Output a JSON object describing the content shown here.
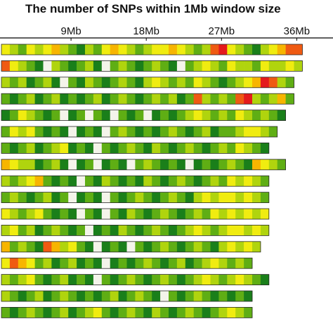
{
  "chart_data": {
    "type": "heatmap",
    "title": "The number of SNPs within 1Mb window size",
    "x_axis": {
      "unit": "Mb",
      "ticks": [
        {
          "value": 9,
          "label": "9Mb"
        },
        {
          "value": 18,
          "label": "18Mb"
        },
        {
          "value": 27,
          "label": "27Mb"
        },
        {
          "value": 36,
          "label": "36Mb"
        }
      ]
    },
    "bin_size_mb": 1,
    "color_scale": [
      "#f4f4ea",
      "#1a7f1a",
      "#5fae14",
      "#b0d40e",
      "#f0ec10",
      "#f7b500",
      "#ef5a12",
      "#e41a1c"
    ],
    "chromosomes": [
      {
        "length_mb": 36,
        "density": [
          4,
          3,
          2,
          4,
          3,
          4,
          5,
          3,
          2,
          1,
          3,
          2,
          4,
          5,
          4,
          3,
          2,
          3,
          4,
          4,
          5,
          4,
          3,
          2,
          3,
          6,
          7,
          4,
          3,
          2,
          1,
          3,
          4,
          5,
          6,
          6
        ]
      },
      {
        "length_mb": 36,
        "density": [
          6,
          4,
          3,
          2,
          1,
          0,
          3,
          2,
          1,
          2,
          3,
          1,
          0,
          2,
          3,
          2,
          1,
          2,
          3,
          2,
          1,
          0,
          2,
          3,
          4,
          3,
          2,
          4,
          3,
          3,
          2,
          4,
          3,
          3,
          4,
          3
        ]
      },
      {
        "length_mb": 35,
        "density": [
          3,
          2,
          3,
          1,
          2,
          3,
          1,
          0,
          2,
          1,
          3,
          2,
          1,
          2,
          3,
          2,
          1,
          3,
          4,
          3,
          2,
          3,
          2,
          4,
          3,
          2,
          1,
          2,
          3,
          4,
          5,
          7,
          6,
          3,
          2
        ]
      },
      {
        "length_mb": 35,
        "density": [
          2,
          1,
          2,
          3,
          1,
          2,
          3,
          1,
          2,
          1,
          2,
          3,
          1,
          2,
          3,
          2,
          1,
          2,
          3,
          2,
          3,
          1,
          2,
          6,
          3,
          2,
          3,
          2,
          6,
          7,
          3,
          2,
          3,
          5,
          2
        ]
      },
      {
        "length_mb": 34,
        "density": [
          1,
          2,
          4,
          3,
          2,
          1,
          2,
          0,
          1,
          2,
          0,
          2,
          1,
          0,
          2,
          1,
          2,
          0,
          1,
          2,
          1,
          2,
          3,
          4,
          3,
          2,
          3,
          2,
          4,
          3,
          2,
          3,
          2,
          1
        ]
      },
      {
        "length_mb": 33,
        "density": [
          2,
          4,
          3,
          4,
          2,
          1,
          2,
          1,
          0,
          1,
          2,
          1,
          0,
          2,
          3,
          2,
          1,
          2,
          1,
          2,
          3,
          2,
          1,
          2,
          3,
          1,
          2,
          2,
          3,
          4,
          4,
          3,
          2
        ]
      },
      {
        "length_mb": 32,
        "density": [
          2,
          1,
          2,
          3,
          1,
          2,
          3,
          4,
          1,
          2,
          1,
          0,
          2,
          1,
          2,
          3,
          2,
          1,
          3,
          2,
          1,
          2,
          3,
          2,
          1,
          2,
          3,
          2,
          4,
          3,
          2,
          1
        ]
      },
      {
        "length_mb": 34,
        "density": [
          5,
          4,
          3,
          3,
          1,
          2,
          3,
          1,
          0,
          1,
          2,
          0,
          1,
          2,
          1,
          0,
          2,
          3,
          2,
          1,
          2,
          1,
          0,
          1,
          2,
          1,
          2,
          3,
          2,
          1,
          5,
          4,
          3,
          2
        ]
      },
      {
        "length_mb": 32,
        "density": [
          3,
          2,
          3,
          4,
          5,
          2,
          1,
          2,
          1,
          0,
          2,
          1,
          3,
          2,
          1,
          2,
          1,
          3,
          2,
          1,
          2,
          3,
          2,
          1,
          2,
          3,
          2,
          4,
          3,
          4,
          3,
          2
        ]
      },
      {
        "length_mb": 32,
        "density": [
          2,
          3,
          2,
          1,
          2,
          3,
          1,
          2,
          0,
          1,
          2,
          1,
          0,
          2,
          1,
          2,
          3,
          2,
          1,
          2,
          3,
          2,
          1,
          3,
          4,
          3,
          4,
          4,
          3,
          4,
          3,
          2
        ]
      },
      {
        "length_mb": 32,
        "density": [
          4,
          3,
          2,
          3,
          4,
          2,
          1,
          2,
          1,
          0,
          2,
          1,
          0,
          2,
          1,
          3,
          2,
          1,
          2,
          3,
          2,
          1,
          2,
          3,
          2,
          4,
          3,
          4,
          3,
          4,
          3,
          4
        ]
      },
      {
        "length_mb": 32,
        "density": [
          3,
          4,
          2,
          3,
          1,
          2,
          3,
          2,
          1,
          2,
          0,
          1,
          2,
          1,
          3,
          2,
          1,
          2,
          3,
          2,
          1,
          2,
          3,
          4,
          3,
          2,
          3,
          4,
          4,
          3,
          4,
          3
        ]
      },
      {
        "length_mb": 31,
        "density": [
          5,
          2,
          3,
          2,
          1,
          6,
          5,
          3,
          4,
          2,
          1,
          0,
          1,
          2,
          1,
          0,
          2,
          1,
          2,
          3,
          2,
          1,
          2,
          3,
          2,
          1,
          3,
          4,
          3,
          4,
          3
        ]
      },
      {
        "length_mb": 30,
        "density": [
          4,
          6,
          5,
          4,
          2,
          3,
          1,
          2,
          3,
          1,
          2,
          1,
          0,
          1,
          2,
          1,
          2,
          3,
          2,
          1,
          2,
          3,
          1,
          2,
          3,
          4,
          3,
          2,
          3,
          2
        ]
      },
      {
        "length_mb": 32,
        "density": [
          3,
          2,
          3,
          4,
          2,
          1,
          2,
          3,
          1,
          2,
          1,
          0,
          2,
          1,
          2,
          3,
          2,
          1,
          2,
          3,
          2,
          1,
          2,
          3,
          4,
          3,
          2,
          3,
          4,
          3,
          2,
          1
        ]
      },
      {
        "length_mb": 30,
        "density": [
          3,
          2,
          1,
          2,
          3,
          1,
          2,
          3,
          2,
          1,
          2,
          1,
          2,
          3,
          1,
          2,
          3,
          2,
          1,
          0,
          2,
          1,
          2,
          3,
          2,
          1,
          2,
          1,
          2,
          1
        ]
      },
      {
        "length_mb": 30,
        "density": [
          2,
          1,
          2,
          3,
          2,
          1,
          2,
          3,
          1,
          2,
          3,
          4,
          2,
          1,
          2,
          3,
          2,
          1,
          3,
          2,
          1,
          2,
          3,
          2,
          1,
          2,
          3,
          4,
          3,
          2
        ]
      }
    ]
  }
}
